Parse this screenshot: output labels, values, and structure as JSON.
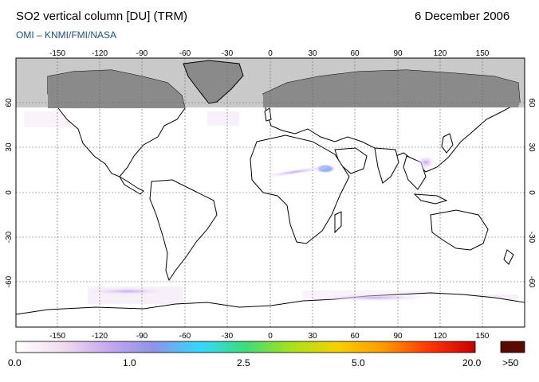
{
  "header": {
    "title": "SO2 vertical column [DU] (TRM)",
    "date": "6 December 2006",
    "subtitle": "OMI  –  KNMI/FMI/NASA"
  },
  "map": {
    "lon_ticks": [
      "-150",
      "-120",
      "-90",
      "-60",
      "-30",
      "0",
      "30",
      "60",
      "90",
      "120",
      "150"
    ],
    "lat_ticks": [
      "60",
      "30",
      "0",
      "-30",
      "-60"
    ],
    "lon_range": [
      -180,
      180
    ],
    "lat_range": [
      -90,
      90
    ],
    "grid": true,
    "no_data_color": "#c8c8c8",
    "continent_color": "#888888"
  },
  "colorbar": {
    "labels": [
      "0.0",
      "1.0",
      "2.5",
      "5.0",
      "20.0"
    ],
    "overflow_label": ">50",
    "overflow_color": "#5a0a00",
    "stops": [
      "#ffffff",
      "#f4dcef",
      "#c7a8ef",
      "#8e93ea",
      "#33d8ff",
      "#3ddc7a",
      "#a7e21c",
      "#f5d000",
      "#ff9a00",
      "#ff3600",
      "#c80000"
    ]
  }
}
